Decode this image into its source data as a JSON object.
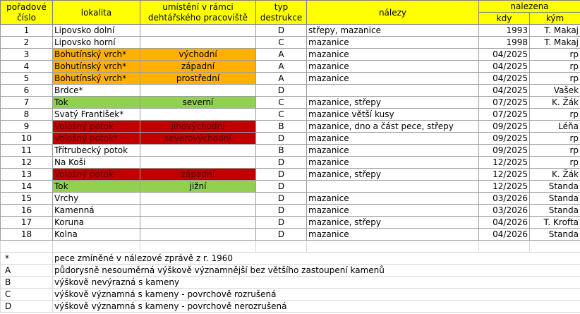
{
  "headers": {
    "num": [
      "pořadové",
      "číslo"
    ],
    "location": "lokalita",
    "placement": [
      "umístění v rámci",
      "dehtářského pracoviště"
    ],
    "type": [
      "typ",
      "destrukce"
    ],
    "finds": "nálezy",
    "found": "nalezena",
    "when": "kdy",
    "who": "kým"
  },
  "rows": [
    {
      "num": "1",
      "location": "Lipovsko dolní",
      "placement": "",
      "type": "D",
      "finds": "střepy, mazanice",
      "when": "1993",
      "who": "T. Makaj",
      "color": ""
    },
    {
      "num": "2",
      "location": "Lipovsko horní",
      "placement": "",
      "type": "C",
      "finds": "mazanice",
      "when": "1998",
      "who": "T. Makaj",
      "color": ""
    },
    {
      "num": "3",
      "location": "Bohutínský vrch*",
      "placement": "východní",
      "type": "A",
      "finds": "mazanice",
      "when": "04/2025",
      "who": "rp",
      "color": "orange"
    },
    {
      "num": "4",
      "location": "Bohutínský vrch*",
      "placement": "západní",
      "type": "A",
      "finds": "mazanice",
      "when": "04/2025",
      "who": "rp",
      "color": "orange"
    },
    {
      "num": "5",
      "location": "Bohutínský vrch*",
      "placement": "prostřední",
      "type": "A",
      "finds": "mazanice",
      "when": "04/2025",
      "who": "rp",
      "color": "orange"
    },
    {
      "num": "6",
      "location": "Brdce*",
      "placement": "",
      "type": "D",
      "finds": "",
      "when": "04/2025",
      "who": "Vašek",
      "color": ""
    },
    {
      "num": "7",
      "location": "Tok",
      "placement": "severní",
      "type": "C",
      "finds": "mazanice, střepy",
      "when": "07/2025",
      "who": "K. Žák",
      "color": "green"
    },
    {
      "num": "8",
      "location": "Svatý František*",
      "placement": "",
      "type": "C",
      "finds": "mazanice větší kusy",
      "when": "07/2025",
      "who": "rp",
      "color": ""
    },
    {
      "num": "9",
      "location": "Vološný potok",
      "placement": "jihovýchodní",
      "type": "B",
      "finds": "mazanice, dno a část pece, střepy",
      "when": "09/2025",
      "who": "Léňa",
      "color": "red"
    },
    {
      "num": "10",
      "location": "Vološný potok*",
      "placement": "severovýchodní",
      "type": "D",
      "finds": "mazanice",
      "when": "09/2025",
      "who": "rp",
      "color": "red"
    },
    {
      "num": "11",
      "location": "Třítrubecký potok",
      "placement": "",
      "type": "B",
      "finds": "mazanice",
      "when": "09/2025",
      "who": "rp",
      "color": ""
    },
    {
      "num": "12",
      "location": "Na Koši",
      "placement": "",
      "type": "D",
      "finds": "mazanice",
      "when": "12/2025",
      "who": "rp",
      "color": ""
    },
    {
      "num": "13",
      "location": "Vološný potok",
      "placement": "západní",
      "type": "D",
      "finds": "mazanice, střepy",
      "when": "12/2025",
      "who": "K. Žák",
      "color": "red"
    },
    {
      "num": "14",
      "location": "Tok",
      "placement": "jižní",
      "type": "D",
      "finds": "",
      "when": "12/2025",
      "who": "Standa",
      "color": "green"
    },
    {
      "num": "15",
      "location": "Vrchy",
      "placement": "",
      "type": "D",
      "finds": "mazanice",
      "when": "03/2026",
      "who": "Standa",
      "color": ""
    },
    {
      "num": "16",
      "location": "Kamenná",
      "placement": "",
      "type": "D",
      "finds": "mazanice",
      "when": "03/2026",
      "who": "Standa",
      "color": ""
    },
    {
      "num": "17",
      "location": "Koruna",
      "placement": "",
      "type": "D",
      "finds": "mazanice, střepy",
      "when": "04/2026",
      "who": "T. Krofta",
      "color": ""
    },
    {
      "num": "18",
      "location": "Kolna",
      "placement": "",
      "type": "D",
      "finds": "mazanice",
      "when": "04/2026",
      "who": "Standa",
      "color": ""
    }
  ],
  "legend": [
    {
      "key": "*",
      "text": "pece zmíněné v nálezové zprávě z r. 1960"
    },
    {
      "key": "A",
      "text": "půdorysně nesouměrná výškově významnější bez většího zastoupení kamenů"
    },
    {
      "key": "B",
      "text": "výškově nevýrazná s kameny"
    },
    {
      "key": "C",
      "text": "výškově významná s kameny - povrchově rozrušená"
    },
    {
      "key": "D",
      "text": "výškově významná s kameny - povrchově nerozrušená"
    }
  ],
  "colors": {
    "header": "#ffff00",
    "orange": "#ffb000",
    "green": "#92d050",
    "red": "#c00000"
  }
}
